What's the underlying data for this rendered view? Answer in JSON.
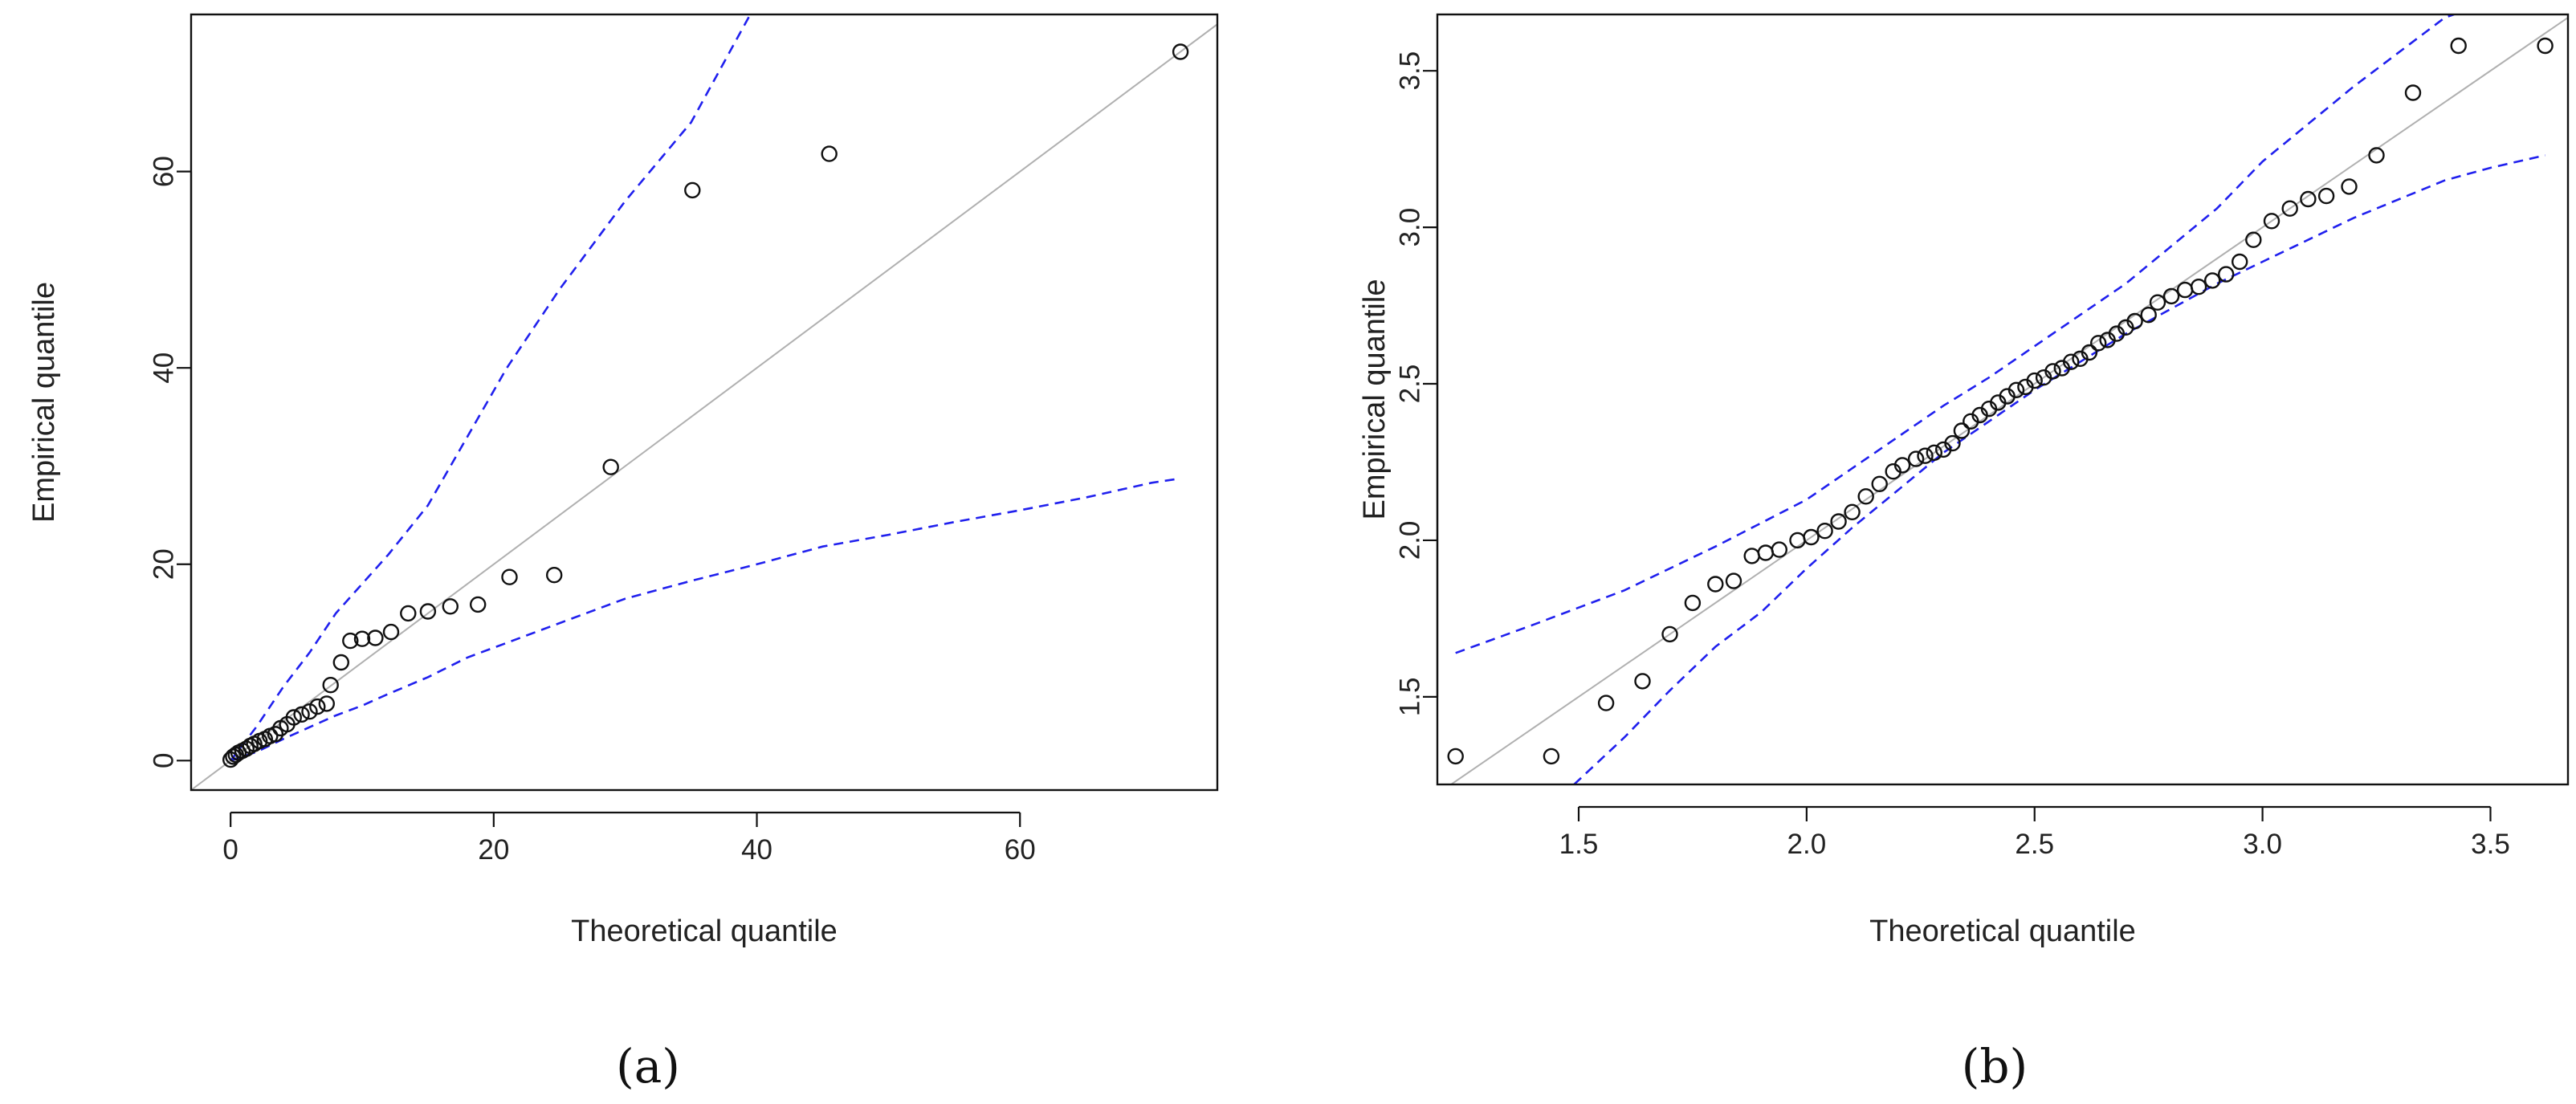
{
  "chart_data": [
    {
      "type": "scatter",
      "panel_label": "(a)",
      "xlabel": "Theoretical quantile",
      "ylabel": "Empirical quantile",
      "xlim": [
        -3,
        75
      ],
      "ylim": [
        -3,
        76
      ],
      "xticks": [
        0,
        20,
        40,
        60
      ],
      "yticks": [
        0,
        20,
        40,
        60
      ],
      "grid": false,
      "colors": {
        "points": "#111111",
        "reference": "#b0b0b0",
        "band": "#2020ee"
      },
      "points": {
        "x": [
          0.0,
          0.2,
          0.4,
          0.6,
          0.9,
          1.2,
          1.5,
          1.8,
          2.2,
          2.6,
          3.0,
          3.4,
          3.8,
          4.3,
          4.8,
          5.4,
          6.0,
          6.6,
          7.3,
          7.6,
          8.4,
          9.1,
          10.0,
          11.0,
          12.2,
          13.5,
          15.0,
          16.7,
          18.8,
          21.2,
          24.6,
          28.9,
          35.1,
          45.5,
          72.2
        ],
        "y": [
          0.1,
          0.4,
          0.6,
          0.8,
          1.0,
          1.2,
          1.5,
          1.7,
          2.0,
          2.2,
          2.5,
          2.7,
          3.3,
          3.7,
          4.4,
          4.7,
          5.0,
          5.5,
          5.8,
          7.7,
          10.0,
          12.2,
          12.4,
          12.5,
          13.1,
          15.0,
          15.2,
          15.7,
          15.9,
          18.7,
          18.9,
          29.9,
          58.1,
          61.8,
          72.2
        ]
      },
      "reference_line": {
        "x": [
          -3,
          75
        ],
        "y": [
          -3,
          75
        ]
      },
      "upper_band": {
        "x": [
          0,
          2,
          4,
          6,
          8,
          10,
          12,
          15,
          18,
          21,
          25,
          30,
          35,
          39.5
        ],
        "y": [
          0,
          3.5,
          7.5,
          11,
          15,
          18,
          21,
          26,
          33,
          40,
          48,
          57,
          65,
          76
        ]
      },
      "lower_band": {
        "x": [
          0,
          2,
          4,
          6,
          8,
          10,
          12,
          15,
          18,
          21,
          25,
          30,
          35,
          40,
          45,
          50,
          55,
          60,
          65,
          70,
          72
        ],
        "y": [
          0,
          0.9,
          2.2,
          3.4,
          4.6,
          5.6,
          6.8,
          8.5,
          10.5,
          12,
          14,
          16.5,
          18.3,
          20,
          21.8,
          23,
          24.3,
          25.5,
          26.8,
          28.3,
          28.7
        ]
      }
    },
    {
      "type": "scatter",
      "panel_label": "(b)",
      "xlabel": "Theoretical quantile",
      "ylabel": "Empirical quantile",
      "xlim": [
        1.19,
        3.67
      ],
      "ylim": [
        1.22,
        3.68
      ],
      "xticks": [
        1.5,
        2.0,
        2.5,
        3.0,
        3.5
      ],
      "yticks": [
        1.5,
        2.0,
        2.5,
        3.0,
        3.5
      ],
      "xtick_labels": [
        "1.5",
        "2.0",
        "2.5",
        "3.0",
        "3.5"
      ],
      "ytick_labels": [
        "1.5",
        "2.0",
        "2.5",
        "3.0",
        "3.5"
      ],
      "grid": false,
      "colors": {
        "points": "#111111",
        "reference": "#b0b0b0",
        "band": "#2020ee"
      },
      "points": {
        "x": [
          1.23,
          1.44,
          1.56,
          1.64,
          1.7,
          1.75,
          1.8,
          1.84,
          1.88,
          1.91,
          1.94,
          1.98,
          2.01,
          2.04,
          2.07,
          2.1,
          2.13,
          2.16,
          2.19,
          2.21,
          2.24,
          2.26,
          2.28,
          2.3,
          2.32,
          2.34,
          2.36,
          2.38,
          2.4,
          2.42,
          2.44,
          2.46,
          2.48,
          2.5,
          2.52,
          2.54,
          2.56,
          2.58,
          2.6,
          2.62,
          2.64,
          2.66,
          2.68,
          2.7,
          2.72,
          2.75,
          2.77,
          2.8,
          2.83,
          2.86,
          2.89,
          2.92,
          2.95,
          2.98,
          3.02,
          3.06,
          3.1,
          3.14,
          3.19,
          3.25,
          3.33,
          3.43,
          3.62
        ],
        "y": [
          1.31,
          1.31,
          1.48,
          1.55,
          1.7,
          1.8,
          1.86,
          1.87,
          1.95,
          1.96,
          1.97,
          2.0,
          2.01,
          2.03,
          2.06,
          2.09,
          2.14,
          2.18,
          2.22,
          2.24,
          2.26,
          2.27,
          2.28,
          2.29,
          2.31,
          2.35,
          2.38,
          2.4,
          2.42,
          2.44,
          2.46,
          2.48,
          2.49,
          2.51,
          2.52,
          2.54,
          2.55,
          2.57,
          2.58,
          2.6,
          2.63,
          2.64,
          2.66,
          2.68,
          2.7,
          2.72,
          2.76,
          2.78,
          2.8,
          2.81,
          2.83,
          2.85,
          2.89,
          2.96,
          3.02,
          3.06,
          3.09,
          3.1,
          3.13,
          3.23,
          3.43,
          3.58,
          3.58
        ]
      },
      "reference_line": {
        "x": [
          1.19,
          3.67
        ],
        "y": [
          1.19,
          3.67
        ]
      },
      "upper_band": {
        "x": [
          1.23,
          1.4,
          1.6,
          1.8,
          2.0,
          2.2,
          2.3,
          2.4,
          2.5,
          2.6,
          2.7,
          2.8,
          2.9,
          3.0,
          3.1,
          3.2,
          3.3,
          3.4,
          3.42
        ],
        "y": [
          1.64,
          1.73,
          1.84,
          1.98,
          2.13,
          2.33,
          2.43,
          2.52,
          2.62,
          2.72,
          2.82,
          2.94,
          3.06,
          3.21,
          3.33,
          3.45,
          3.56,
          3.67,
          3.68
        ]
      },
      "lower_band": {
        "x": [
          1.49,
          1.6,
          1.7,
          1.8,
          1.9,
          2.0,
          2.1,
          2.2,
          2.3,
          2.4,
          2.5,
          2.6,
          2.7,
          2.8,
          2.9,
          3.0,
          3.1,
          3.2,
          3.3,
          3.4,
          3.5,
          3.62
        ],
        "y": [
          1.22,
          1.37,
          1.52,
          1.66,
          1.77,
          1.91,
          2.04,
          2.16,
          2.28,
          2.38,
          2.48,
          2.57,
          2.66,
          2.74,
          2.82,
          2.89,
          2.96,
          3.03,
          3.09,
          3.15,
          3.19,
          3.23
        ]
      }
    }
  ]
}
